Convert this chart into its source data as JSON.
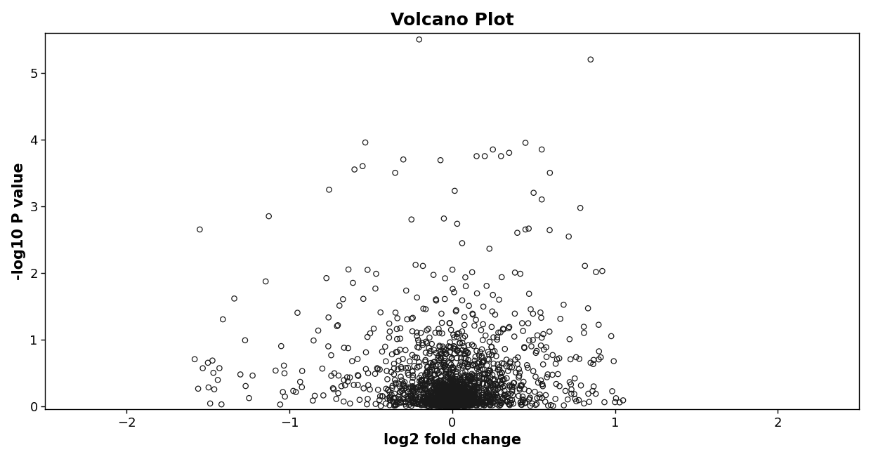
{
  "title": "Volcano Plot",
  "xlabel": "log2 fold change",
  "ylabel": "-log10 P value",
  "xlim": [
    -2.5,
    2.5
  ],
  "ylim": [
    -0.05,
    5.6
  ],
  "xticks": [
    -2,
    -1,
    0,
    1,
    2
  ],
  "yticks": [
    0,
    1,
    2,
    3,
    4,
    5
  ],
  "title_fontsize": 18,
  "label_fontsize": 15,
  "tick_fontsize": 13,
  "marker_size": 28,
  "marker_color": "none",
  "marker_edgecolor": "#1a1a1a",
  "marker_linewidth": 0.9,
  "background_color": "#ffffff",
  "seed": 12345,
  "n_points": 3000,
  "figwidth": 12.4,
  "figheight": 6.54,
  "dpi": 100
}
